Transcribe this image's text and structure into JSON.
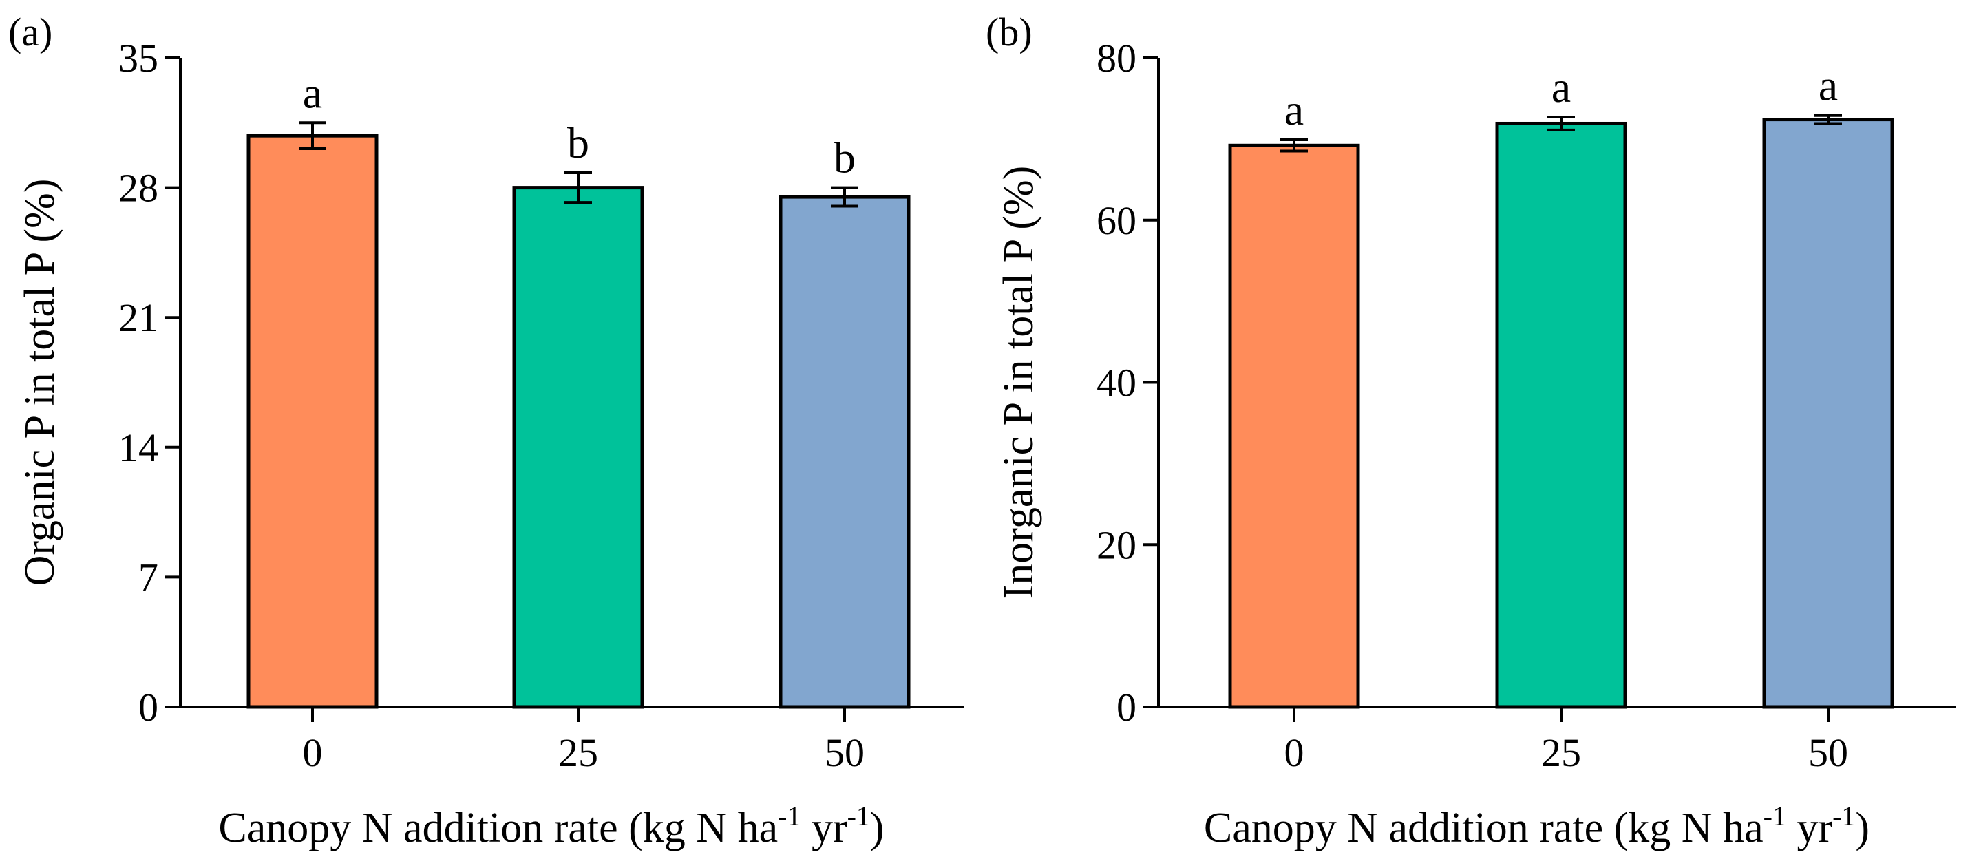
{
  "chart_data": [
    {
      "type": "bar",
      "panel_label": "(a)",
      "categories": [
        "0",
        "25",
        "50"
      ],
      "values": [
        30.8,
        28.0,
        27.5
      ],
      "errors": [
        0.7,
        0.8,
        0.5
      ],
      "significance": [
        "a",
        "b",
        "b"
      ],
      "colors": [
        "#FF8C5A",
        "#00C29A",
        "#82A6CF"
      ],
      "ylabel": "Organic P in total P (%)",
      "xlabel": "Canopy N addition rate (kg N ha",
      "xlabel_sup1": "-1",
      "xlabel_mid": " yr",
      "xlabel_sup2": "-1",
      "xlabel_end": ")",
      "ylim": [
        0,
        35
      ],
      "yticks": [
        "0",
        "7",
        "14",
        "21",
        "28",
        "35"
      ],
      "grid": false
    },
    {
      "type": "bar",
      "panel_label": "(b)",
      "categories": [
        "0",
        "25",
        "50"
      ],
      "values": [
        69.2,
        71.9,
        72.4
      ],
      "errors": [
        0.7,
        0.8,
        0.5
      ],
      "significance": [
        "a",
        "a",
        "a"
      ],
      "colors": [
        "#FF8C5A",
        "#00C29A",
        "#82A6CF"
      ],
      "ylabel": "Inorganic P in total P (%)",
      "xlabel": "Canopy N addition rate (kg N ha",
      "xlabel_sup1": "-1",
      "xlabel_mid": " yr",
      "xlabel_sup2": "-1",
      "xlabel_end": ")",
      "ylim": [
        0,
        80
      ],
      "yticks": [
        "0",
        "20",
        "40",
        "60",
        "80"
      ],
      "grid": false
    }
  ]
}
